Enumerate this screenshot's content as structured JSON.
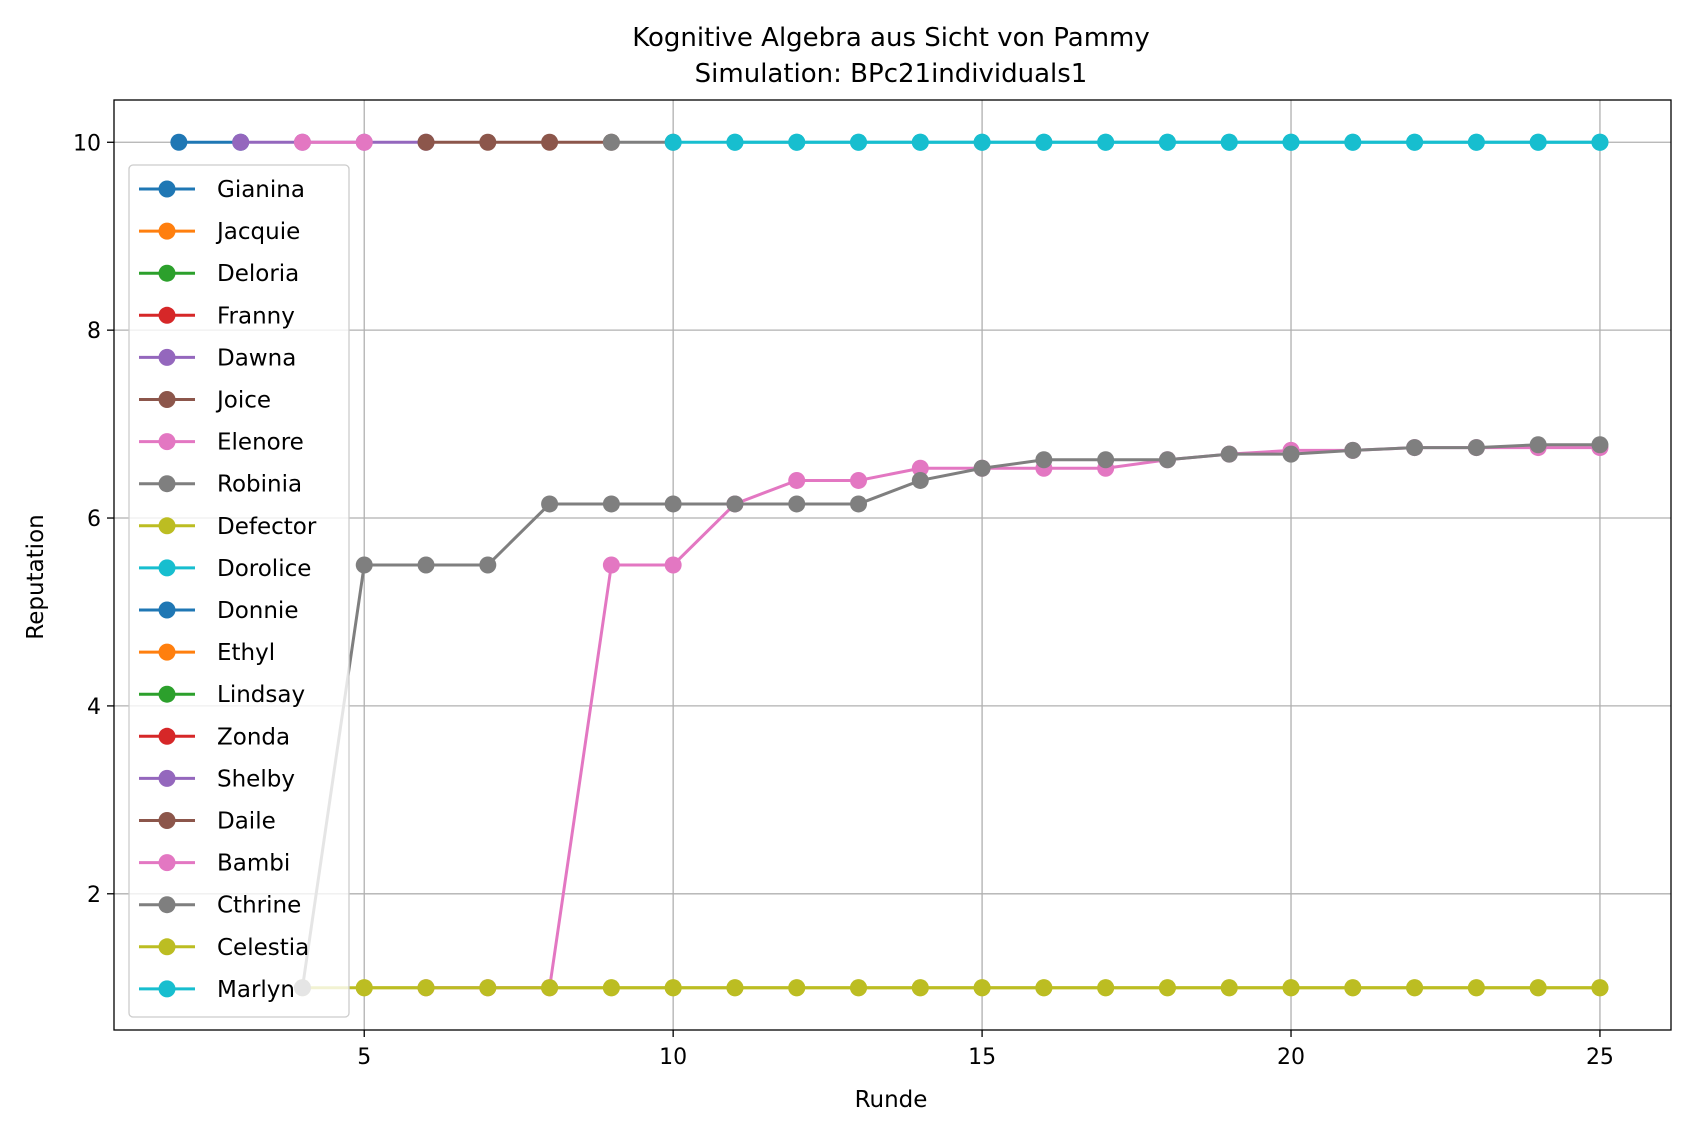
{
  "chart_data": {
    "type": "line",
    "title": "Kognitive Algebra aus Sicht von Pammy",
    "subtitle": "Simulation: BPc21individuals1",
    "xlabel": "Runde",
    "ylabel": "Reputation",
    "xlim": [
      0.95,
      26.15
    ],
    "ylim": [
      0.55,
      10.45
    ],
    "xticks": [
      5,
      10,
      15,
      20,
      25
    ],
    "yticks": [
      2,
      4,
      6,
      8,
      10
    ],
    "grid": true,
    "legend_position": "left",
    "series": [
      {
        "name": "Gianina",
        "color": "#1f77b4",
        "x": [
          2,
          3
        ],
        "y": [
          10,
          10
        ]
      },
      {
        "name": "Jacquie",
        "color": "#ff7f0e",
        "x": [],
        "y": []
      },
      {
        "name": "Deloria",
        "color": "#2ca02c",
        "x": [],
        "y": []
      },
      {
        "name": "Franny",
        "color": "#d62728",
        "x": [],
        "y": []
      },
      {
        "name": "Dawna",
        "color": "#9467bd",
        "x": [
          3,
          4,
          5,
          6
        ],
        "y": [
          10,
          10,
          10,
          10
        ]
      },
      {
        "name": "Joice",
        "color": "#8c564b",
        "x": [
          6,
          7,
          8,
          9
        ],
        "y": [
          10,
          10,
          10,
          10
        ]
      },
      {
        "name": "Elenore",
        "color": "#e377c2",
        "x": [
          4,
          5
        ],
        "y": [
          10,
          10
        ]
      },
      {
        "name": "Robinia",
        "color": "#7f7f7f",
        "x": [
          9,
          10
        ],
        "y": [
          10,
          10
        ]
      },
      {
        "name": "Defector",
        "color": "#bcbd22",
        "x": [
          4,
          5,
          6,
          7,
          8,
          9,
          10,
          11,
          12,
          13,
          14,
          15,
          16,
          17,
          18,
          19,
          20,
          21,
          22,
          23,
          24,
          25
        ],
        "y": [
          1,
          1,
          1,
          1,
          1,
          1,
          1,
          1,
          1,
          1,
          1,
          1,
          1,
          1,
          1,
          1,
          1,
          1,
          1,
          1,
          1,
          1
        ]
      },
      {
        "name": "Dorolice",
        "color": "#17becf",
        "x": [
          10,
          11,
          12,
          13,
          14,
          15,
          16,
          17,
          18,
          19,
          20,
          21,
          22,
          23,
          24,
          25
        ],
        "y": [
          10,
          10,
          10,
          10,
          10,
          10,
          10,
          10,
          10,
          10,
          10,
          10,
          10,
          10,
          10,
          10
        ]
      },
      {
        "name": "Donnie",
        "color": "#1f77b4",
        "x": [],
        "y": []
      },
      {
        "name": "Ethyl",
        "color": "#ff7f0e",
        "x": [],
        "y": []
      },
      {
        "name": "Lindsay",
        "color": "#2ca02c",
        "x": [],
        "y": []
      },
      {
        "name": "Zonda",
        "color": "#d62728",
        "x": [],
        "y": []
      },
      {
        "name": "Shelby",
        "color": "#9467bd",
        "x": [],
        "y": []
      },
      {
        "name": "Daile",
        "color": "#8c564b",
        "x": [],
        "y": []
      },
      {
        "name": "Bambi",
        "color": "#e377c2",
        "x": [
          6,
          7,
          8,
          9,
          10,
          11,
          12,
          13,
          14,
          15,
          16,
          17,
          18,
          19,
          20,
          21,
          22,
          23,
          24,
          25
        ],
        "y": [
          1,
          1,
          1,
          5.5,
          5.5,
          6.15,
          6.4,
          6.4,
          6.53,
          6.53,
          6.53,
          6.53,
          6.62,
          6.68,
          6.72,
          6.72,
          6.75,
          6.75,
          6.75,
          6.75
        ]
      },
      {
        "name": "Cthrine",
        "color": "#7f7f7f",
        "x": [
          4,
          5,
          6,
          7,
          8,
          9,
          10,
          11,
          12,
          13,
          14,
          15,
          16,
          17,
          18,
          19,
          20,
          21,
          22,
          23,
          24,
          25
        ],
        "y": [
          1,
          5.5,
          5.5,
          5.5,
          6.15,
          6.15,
          6.15,
          6.15,
          6.15,
          6.15,
          6.4,
          6.53,
          6.62,
          6.62,
          6.62,
          6.68,
          6.68,
          6.72,
          6.75,
          6.75,
          6.78,
          6.78
        ]
      },
      {
        "name": "Celestia",
        "color": "#bcbd22",
        "x": [
          5,
          6,
          7,
          8,
          9,
          10,
          11,
          12,
          13,
          14,
          15,
          16,
          17,
          18,
          19,
          20,
          21,
          22,
          23,
          24,
          25
        ],
        "y": [
          1,
          1,
          1,
          1,
          1,
          1,
          1,
          1,
          1,
          1,
          1,
          1,
          1,
          1,
          1,
          1,
          1,
          1,
          1,
          1,
          1
        ]
      },
      {
        "name": "Marlyn",
        "color": "#17becf",
        "x": [
          11,
          12,
          13,
          14,
          15,
          16,
          17,
          18,
          19,
          20,
          21,
          22,
          23,
          24,
          25
        ],
        "y": [
          10,
          10,
          10,
          10,
          10,
          10,
          10,
          10,
          10,
          10,
          10,
          10,
          10,
          10,
          10
        ]
      }
    ]
  }
}
